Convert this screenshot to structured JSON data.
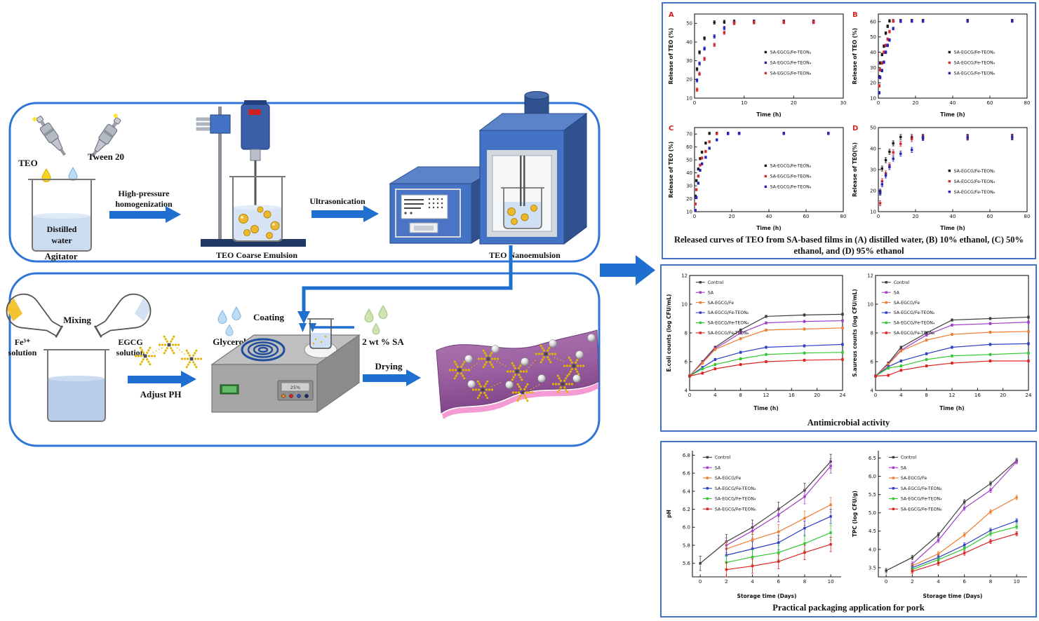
{
  "diagram": {
    "teo": "TEO",
    "tween": "Tween 20",
    "distilled1": "Distilled",
    "distilled2": "water",
    "agitator": "Agitator",
    "hp1": "High-pressure",
    "hp2": "homogenization",
    "coarse": "TEO Coarse Emulsion",
    "ultrasonication": "Ultrasonication",
    "nano": "TEO Nanoemulsion",
    "fe1": "Fe³⁺",
    "fe2": "solution",
    "mixing": "Mixing",
    "egcg1": "EGCG",
    "egcg2": "solution",
    "adjust": "Adjust PH",
    "glycerol": "Glycerol",
    "coating": "Coating",
    "sa": "2 wt % SA",
    "drying": "Drying",
    "display": "25%"
  },
  "captions": {
    "release": "Released curves of TEO from SA-based films in (A) distilled water, (B) 10% ethanol, (C) 50% ethanol, and (D) 95% ethanol",
    "antimicrobial": "Antimicrobial activity",
    "pork": "Practical packaging application for pork"
  },
  "colors": {
    "accent_blue": "#1f6fd0",
    "panel_border": "#4472c4",
    "box_border": "#2e75d6",
    "series_black": "#1a1a1a",
    "series_blue": "#2323bb",
    "series_red": "#d42a2a",
    "control": "#3d3d3d",
    "sa": "#a03cc8",
    "sa_egcg_fe": "#ed7d31",
    "teon2": "#2d3fc4",
    "teon4": "#31c831",
    "teon6": "#dd2222"
  },
  "chart_data": [
    {
      "id": "release_A",
      "type": "scatter",
      "panel_label": "A",
      "box": true,
      "xlabel": "Time (h)",
      "ylabel": "Release of TEO (%)",
      "xlim": [
        0,
        30
      ],
      "xticks": [
        "0",
        "10",
        "20",
        "30"
      ],
      "ylim": [
        10,
        55
      ],
      "yticks": [
        "10",
        "20",
        "30",
        "40",
        "50"
      ],
      "err": 0.9,
      "legend": {
        "fx": 0.47,
        "fy": 0.42,
        "dy": 0.125
      },
      "x": [
        0.5,
        1,
        2,
        4,
        6,
        8,
        12,
        18,
        24
      ],
      "series": [
        {
          "name": "SA-EGCG/Fe-TEON₂",
          "color": "#1a1a1a",
          "y": [
            25.5,
            34.5,
            42,
            50.5,
            50.8,
            51,
            51,
            51,
            51
          ]
        },
        {
          "name": "SA-EGCG/Fe-TEON₄",
          "color": "#2323bb",
          "y": [
            19.5,
            28.5,
            36.5,
            43,
            47.5,
            50.4,
            50.7,
            50.8,
            50.8
          ]
        },
        {
          "name": "SA-EGCG/Fe-TEON₆",
          "color": "#d42a2a",
          "y": [
            14.5,
            23,
            31,
            38.5,
            45,
            50.2,
            50.6,
            50.7,
            50.7
          ]
        }
      ]
    },
    {
      "id": "release_B",
      "type": "scatter",
      "panel_label": "B",
      "box": true,
      "xlabel": "Time (h)",
      "ylabel": "Release of TEO (%)",
      "xlim": [
        0,
        80
      ],
      "xticks": [
        "0",
        "20",
        "40",
        "60",
        "80"
      ],
      "ylim": [
        10,
        65
      ],
      "yticks": [
        "10",
        "20",
        "30",
        "40",
        "50",
        "60"
      ],
      "err": 0.9,
      "legend": {
        "fx": 0.47,
        "fy": 0.42,
        "dy": 0.125
      },
      "x": [
        0.5,
        1,
        2,
        3,
        4,
        5,
        6,
        8,
        12,
        18,
        24,
        48,
        72
      ],
      "series": [
        {
          "name": "SA-EGCG/Fe-TEON₂",
          "color": "#1a1a1a",
          "y": [
            24,
            33,
            38.5,
            44,
            52.5,
            57,
            60.5,
            60.6,
            60.7,
            60.7,
            60.7,
            60.7,
            60.7
          ]
        },
        {
          "name": "SA-EGCG/Fe-TEON₄",
          "color": "#d42a2a",
          "y": [
            18,
            28.5,
            33,
            40,
            44.5,
            48.5,
            53.5,
            60.4,
            60.5,
            60.5,
            60.5,
            60.5,
            60.5
          ]
        },
        {
          "name": "SA-EGCG/Fe-TEON₆",
          "color": "#2323bb",
          "y": [
            13.5,
            23.5,
            28,
            33.5,
            40,
            44.5,
            48,
            55.5,
            60.3,
            60.4,
            60.4,
            60.4,
            60.5
          ]
        }
      ]
    },
    {
      "id": "release_C",
      "type": "scatter",
      "panel_label": "C",
      "box": true,
      "xlabel": "Time (h)",
      "ylabel": "Release of TEO (%)",
      "xlim": [
        0,
        80
      ],
      "xticks": [
        "0",
        "20",
        "40",
        "60",
        "80"
      ],
      "ylim": [
        10,
        75
      ],
      "yticks": [
        "10",
        "20",
        "30",
        "40",
        "50",
        "60",
        "70"
      ],
      "err": 0.9,
      "legend": {
        "fx": 0.47,
        "fy": 0.42,
        "dy": 0.125
      },
      "x": [
        0.5,
        1,
        2,
        3,
        4,
        6,
        8,
        12,
        18,
        24,
        48,
        72
      ],
      "series": [
        {
          "name": "SA-EGCG/Fe-TEON₂",
          "color": "#1a1a1a",
          "y": [
            22,
            34,
            43,
            51,
            56,
            63,
            70.5,
            70.6,
            70.6,
            70.6,
            70.6,
            70.6
          ]
        },
        {
          "name": "SA-EGCG/Fe-TEON₄",
          "color": "#d42a2a",
          "y": [
            16,
            27,
            37.5,
            46,
            51.5,
            56.5,
            64,
            70.3,
            70.4,
            70.5,
            70.5,
            70.5
          ]
        },
        {
          "name": "SA-EGCG/Fe-TEON₆",
          "color": "#2323bb",
          "y": [
            11,
            21,
            32,
            42,
            47,
            52,
            59,
            65.5,
            70.3,
            70.4,
            70.4,
            70.4
          ]
        }
      ]
    },
    {
      "id": "release_D",
      "type": "scatter",
      "panel_label": "D",
      "box": true,
      "xlabel": "Time (h)",
      "ylabel": "Release of TEO(%)",
      "xlim": [
        0,
        80
      ],
      "xticks": [
        "0",
        "20",
        "40",
        "60",
        "80"
      ],
      "ylim": [
        10,
        50
      ],
      "yticks": [
        "10",
        "20",
        "30",
        "40",
        "50"
      ],
      "err": 1.2,
      "legend": {
        "fx": 0.47,
        "fy": 0.48,
        "dy": 0.125
      },
      "x": [
        1,
        2,
        4,
        6,
        8,
        12,
        18,
        24,
        48,
        72
      ],
      "series": [
        {
          "name": "SA-EGCG/Fe-TEON₂",
          "color": "#1a1a1a",
          "y": [
            19.5,
            30.5,
            34.5,
            38.5,
            42.5,
            45.5,
            45.5,
            45.6,
            45.6,
            45.7
          ]
        },
        {
          "name": "SA-EGCG/Fe-TEON₄",
          "color": "#d42a2a",
          "y": [
            14,
            24.5,
            28.2,
            32,
            38.2,
            42.3,
            44.5,
            45.3,
            45.4,
            45.5
          ]
        },
        {
          "name": "SA-EGCG/Fe-TEON₆",
          "color": "#2323bb",
          "y": [
            19,
            23,
            27.2,
            31.2,
            35.2,
            37.6,
            39.4,
            45,
            45.2,
            45.3
          ]
        }
      ]
    },
    {
      "id": "ecoli",
      "type": "line",
      "box": true,
      "xlabel": "Time (h)",
      "ylabel": "E.coli counts (log CFU/mL)",
      "xlim": [
        0,
        24
      ],
      "xticks": [
        "0",
        "4",
        "8",
        "12",
        "16",
        "20",
        "24"
      ],
      "ylim": [
        4,
        12
      ],
      "yticks": [
        "4",
        "6",
        "8",
        "10",
        "12"
      ],
      "err": 0.08,
      "legend": {
        "fx": 0.04,
        "fy": 0.035,
        "dy": 0.088
      },
      "x": [
        0,
        2,
        4,
        8,
        12,
        18,
        24
      ],
      "series": [
        {
          "name": "Control",
          "color": "#3d3d3d",
          "y": [
            5,
            6,
            7,
            8.2,
            9.15,
            9.25,
            9.3
          ]
        },
        {
          "name": "SA",
          "color": "#a03cc8",
          "y": [
            5,
            5.95,
            6.9,
            8,
            8.7,
            8.8,
            8.85
          ]
        },
        {
          "name": "SA-EGCG/Fe",
          "color": "#ed7d31",
          "y": [
            5,
            5.9,
            6.85,
            7.6,
            8.2,
            8.27,
            8.35
          ]
        },
        {
          "name": "SA-EGCG/Fe-TEON₂",
          "color": "#2d3fc4",
          "y": [
            5,
            5.6,
            6.15,
            6.65,
            7,
            7.1,
            7.2
          ]
        },
        {
          "name": "SA-EGCG/Fe-TEON₄",
          "color": "#31c831",
          "y": [
            5,
            5.5,
            5.8,
            6.2,
            6.5,
            6.6,
            6.65
          ]
        },
        {
          "name": "SA-EGCG/Fe-TEON₆",
          "color": "#dd2222",
          "y": [
            5,
            5.2,
            5.5,
            5.8,
            6,
            6.1,
            6.15
          ]
        }
      ]
    },
    {
      "id": "saureus",
      "type": "line",
      "box": true,
      "xlabel": "Time (h)",
      "ylabel": "S.aureus counts (log CFU/mL)",
      "xlim": [
        0,
        24
      ],
      "xticks": [
        "0",
        "4",
        "8",
        "12",
        "16",
        "20",
        "24"
      ],
      "ylim": [
        4,
        12
      ],
      "yticks": [
        "4",
        "6",
        "8",
        "10",
        "12"
      ],
      "err": 0.08,
      "legend": {
        "fx": 0.04,
        "fy": 0.035,
        "dy": 0.088
      },
      "x": [
        0,
        2,
        4,
        8,
        12,
        18,
        24
      ],
      "series": [
        {
          "name": "Control",
          "color": "#3d3d3d",
          "y": [
            5,
            5.9,
            7,
            8,
            8.9,
            9,
            9.1
          ]
        },
        {
          "name": "SA",
          "color": "#a03cc8",
          "y": [
            5,
            5.85,
            6.8,
            7.85,
            8.55,
            8.65,
            8.75
          ]
        },
        {
          "name": "SA-EGCG/Fe",
          "color": "#ed7d31",
          "y": [
            5,
            5.8,
            6.75,
            7.5,
            7.9,
            8.05,
            8.1
          ]
        },
        {
          "name": "SA-EGCG/Fe-TEON₂",
          "color": "#2d3fc4",
          "y": [
            5,
            5.65,
            6.05,
            6.55,
            7,
            7.2,
            7.25
          ]
        },
        {
          "name": "SA-EGCG/Fe-TEON₄",
          "color": "#31c831",
          "y": [
            5,
            5.55,
            5.7,
            6.15,
            6.4,
            6.5,
            6.6
          ]
        },
        {
          "name": "SA-EGCG/Fe-TEON₆",
          "color": "#dd2222",
          "y": [
            5,
            5.05,
            5.4,
            5.7,
            5.9,
            6.05,
            6.05
          ]
        }
      ]
    },
    {
      "id": "ph",
      "type": "line",
      "box": false,
      "xlabel": "Storage time (Days)",
      "ylabel": "pH",
      "xlim": [
        -0.6,
        10.8
      ],
      "xticks": [
        "0",
        "2",
        "4",
        "6",
        "8",
        "10"
      ],
      "ylim": [
        5.45,
        6.85
      ],
      "yticks": [
        "5.6",
        "5.8",
        "6.0",
        "6.2",
        "6.4",
        "6.6",
        "6.8"
      ],
      "err": 0.08,
      "legend": {
        "fx": 0.07,
        "fy": 0.03,
        "dy": 0.082
      },
      "x": [
        0,
        2,
        4,
        6,
        8,
        10
      ],
      "series": [
        {
          "name": "Control",
          "color": "#3d3d3d",
          "y": [
            5.6,
            5.84,
            6.0,
            6.2,
            6.41,
            6.73
          ]
        },
        {
          "name": "SA",
          "color": "#a03cc8",
          "y": [
            null,
            5.8,
            5.96,
            6.14,
            6.34,
            6.68
          ]
        },
        {
          "name": "SA-EGCG/Fe",
          "color": "#ed7d31",
          "y": [
            null,
            5.76,
            5.86,
            5.95,
            6.1,
            6.25
          ]
        },
        {
          "name": "SA-EGCG/Fe-TEON₂",
          "color": "#2d3fc4",
          "y": [
            null,
            5.69,
            5.76,
            5.83,
            5.99,
            6.12
          ]
        },
        {
          "name": "SA-EGCG/Fe-TEON₄",
          "color": "#31c831",
          "y": [
            null,
            5.61,
            5.67,
            5.72,
            5.82,
            5.94
          ]
        },
        {
          "name": "SA-EGCG/Fe-TEON₆",
          "color": "#dd2222",
          "y": [
            null,
            5.53,
            5.57,
            5.62,
            5.72,
            5.81
          ]
        }
      ]
    },
    {
      "id": "tpc",
      "type": "line",
      "box": false,
      "xlabel": "Storage time (Days)",
      "ylabel": "TPC (log CFU/g)",
      "xlim": [
        -0.6,
        10.8
      ],
      "xticks": [
        "0",
        "2",
        "4",
        "6",
        "8",
        "10"
      ],
      "ylim": [
        3.25,
        6.7
      ],
      "yticks": [
        "3.5",
        "4.0",
        "4.5",
        "5.0",
        "5.5",
        "6.0",
        "6.5"
      ],
      "err": 0.06,
      "legend": {
        "fx": 0.07,
        "fy": 0.03,
        "dy": 0.082
      },
      "x": [
        0,
        2,
        4,
        6,
        8,
        10
      ],
      "series": [
        {
          "name": "Control",
          "color": "#3d3d3d",
          "y": [
            3.42,
            3.78,
            4.4,
            5.3,
            5.8,
            6.43
          ]
        },
        {
          "name": "SA",
          "color": "#a03cc8",
          "y": [
            null,
            3.6,
            4.25,
            5.13,
            5.62,
            6.4
          ]
        },
        {
          "name": "SA-EGCG/Fe",
          "color": "#ed7d31",
          "y": [
            null,
            3.55,
            3.88,
            4.4,
            5.03,
            5.42
          ]
        },
        {
          "name": "SA-EGCG/Fe-TEON₂",
          "color": "#2d3fc4",
          "y": [
            null,
            3.5,
            3.78,
            4.12,
            4.52,
            4.78
          ]
        },
        {
          "name": "SA-EGCG/Fe-TEON₄",
          "color": "#31c831",
          "y": [
            null,
            3.45,
            3.72,
            4.02,
            4.43,
            4.62
          ]
        },
        {
          "name": "SA-EGCG/Fe-TEON₆",
          "color": "#dd2222",
          "y": [
            null,
            3.4,
            3.62,
            3.9,
            4.22,
            4.43
          ]
        }
      ]
    }
  ]
}
